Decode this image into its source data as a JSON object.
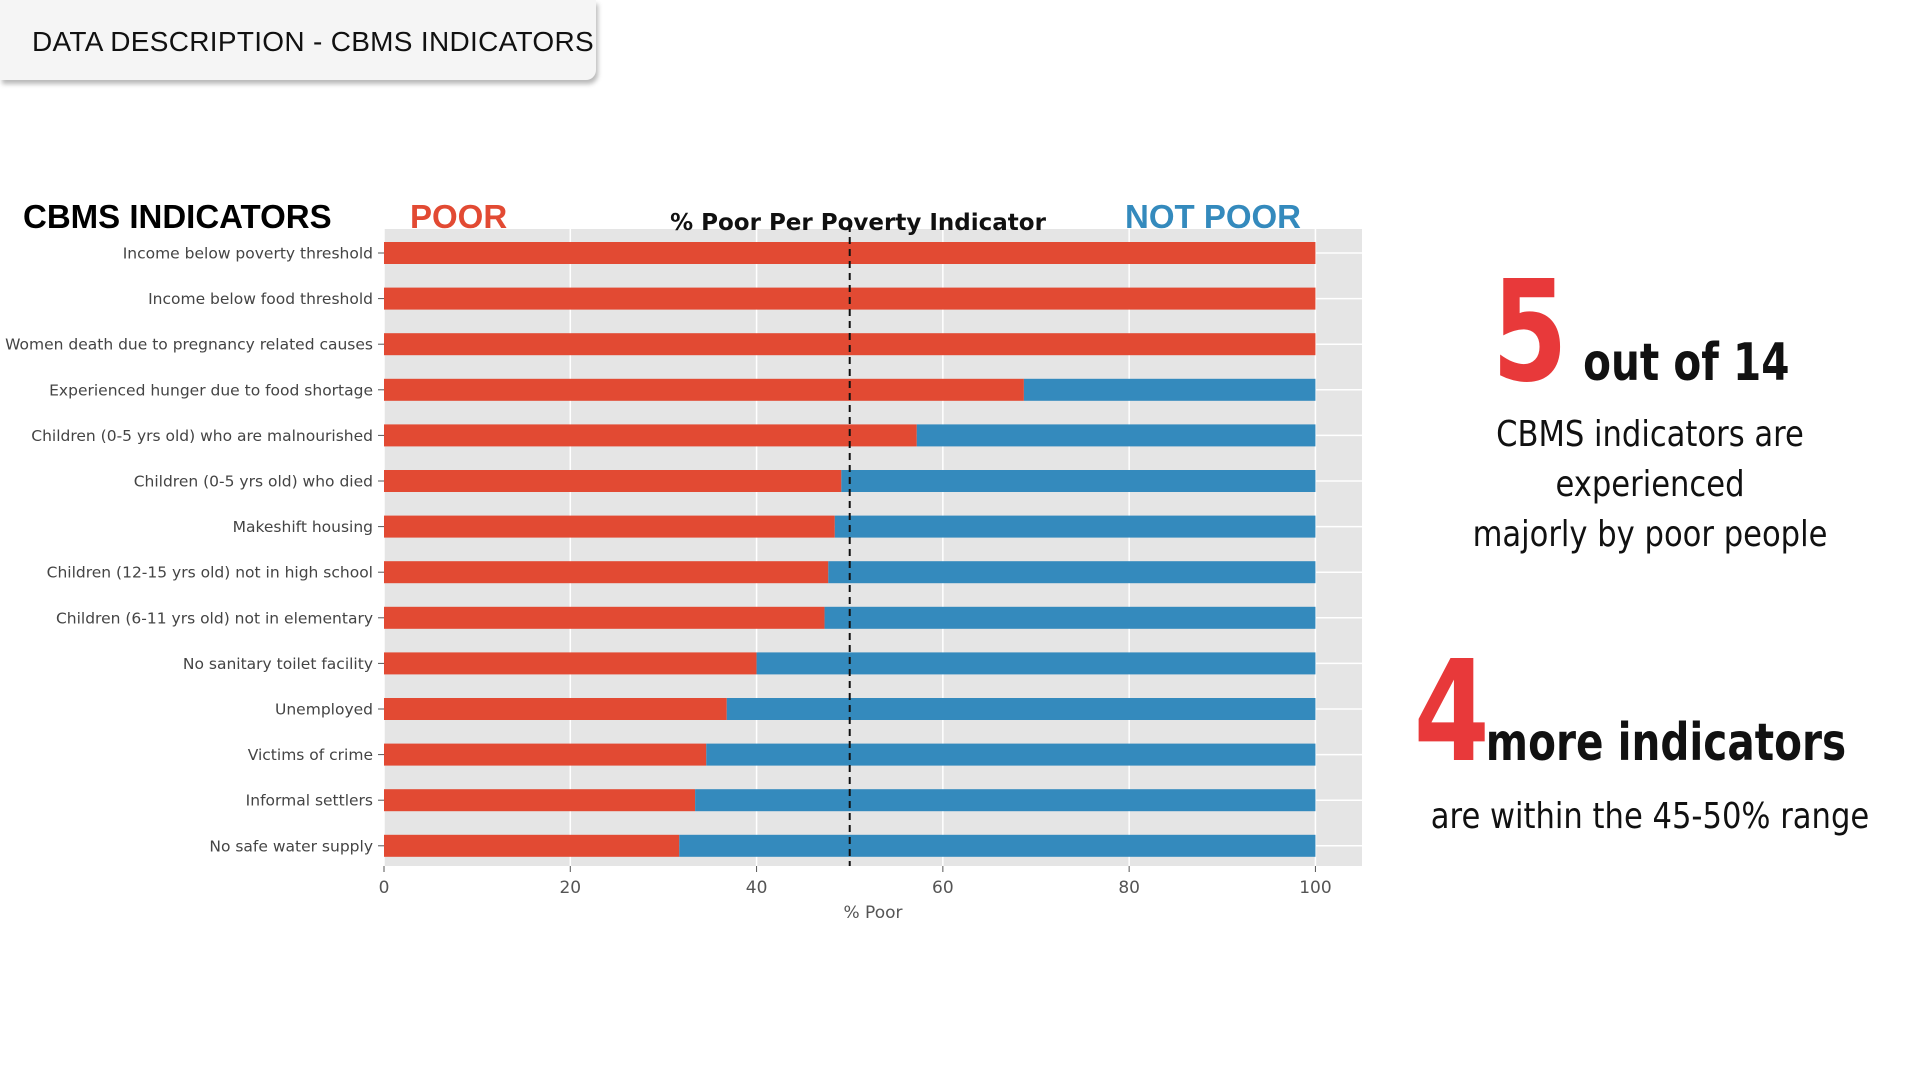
{
  "header": {
    "title": "DATA DESCRIPTION - CBMS INDICATORS"
  },
  "labels": {
    "indicators": "CBMS INDICATORS",
    "poor": "POOR",
    "not_poor": "NOT POOR"
  },
  "colors": {
    "poor": "#e24a33",
    "not_poor": "#348abd",
    "plot_bg": "#e5e5e5",
    "grid": "#ffffff",
    "stat_accent": "#e8393a"
  },
  "chart_data": {
    "type": "bar",
    "orientation": "horizontal",
    "stacked": true,
    "title": "% Poor Per Poverty Indicator",
    "xlabel": "% Poor",
    "ylabel": "",
    "xlim": [
      0,
      105
    ],
    "xticks": [
      0,
      20,
      40,
      60,
      80,
      100
    ],
    "reference_line": 50,
    "grid": true,
    "categories": [
      "Income below poverty threshold",
      "Income below food threshold",
      "Women death due to pregnancy related causes",
      "Experienced hunger due to food shortage",
      "Children (0-5 yrs old) who are malnourished",
      "Children (0-5 yrs old) who died",
      "Makeshift housing",
      "Children (12-15 yrs old) not in high school",
      "Children (6-11 yrs old) not in elementary",
      "No sanitary toilet facility",
      "Unemployed",
      "Victims of crime",
      "Informal settlers",
      "No safe water supply"
    ],
    "series": [
      {
        "values": [
          100,
          100,
          100,
          68.7,
          57.2,
          49.1,
          48.4,
          47.7,
          47.3,
          40,
          36.8,
          34.6,
          33.4,
          31.7
        ]
      },
      {
        "values": [
          0,
          0,
          0,
          31.3,
          42.8,
          50.9,
          51.6,
          52.3,
          52.7,
          60,
          63.2,
          65.4,
          66.6,
          68.3
        ]
      }
    ]
  },
  "stats": [
    {
      "number": "5",
      "headline": "out of 14",
      "sub_lines": [
        "CBMS indicators are experienced",
        "majorly by poor people"
      ]
    },
    {
      "number": "4",
      "headline": "more indicators",
      "sub_lines": [
        "are within the 45-50% range"
      ]
    }
  ]
}
